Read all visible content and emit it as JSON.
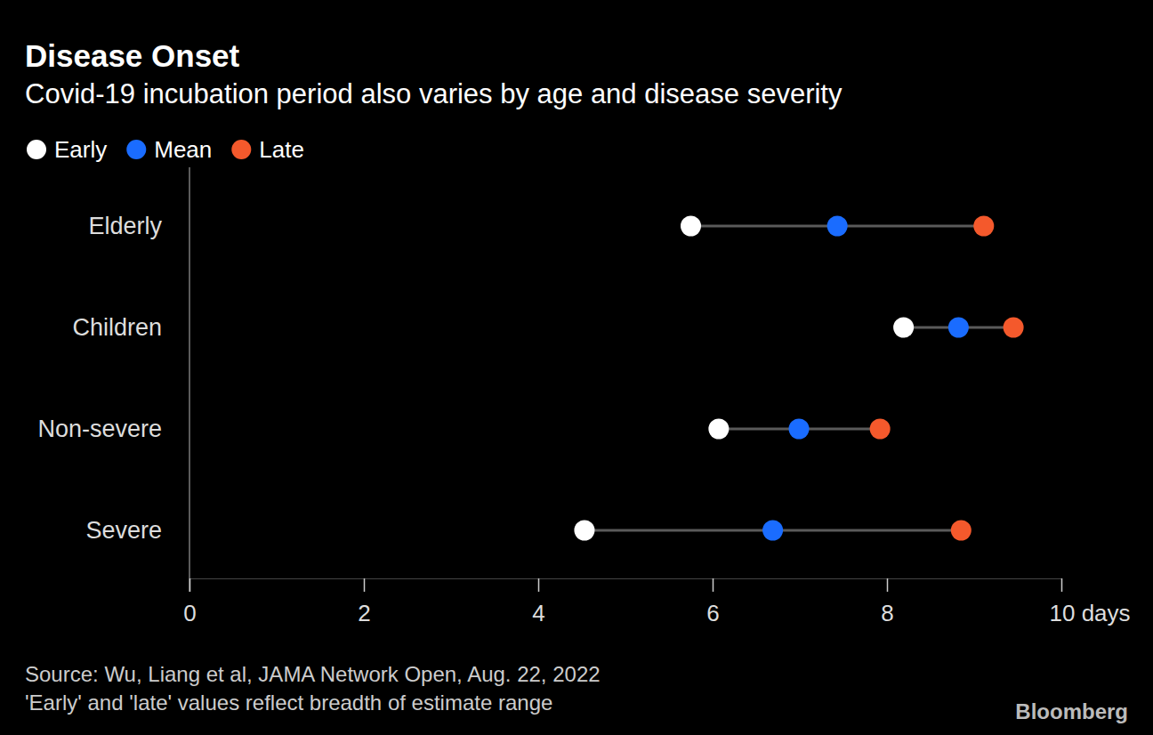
{
  "chart_data": {
    "type": "dot_range",
    "title": "Disease Onset",
    "subtitle": "Covid-19 incubation period also varies by age and disease severity",
    "categories": [
      "Elderly",
      "Children",
      "Non-severe",
      "Severe"
    ],
    "series": [
      {
        "name": "Early",
        "color": "#ffffff",
        "values": [
          5.75,
          8.19,
          6.07,
          4.53
        ]
      },
      {
        "name": "Mean",
        "color": "#1a6cff",
        "values": [
          7.43,
          8.82,
          6.99,
          6.69
        ]
      },
      {
        "name": "Late",
        "color": "#f4592c",
        "values": [
          9.11,
          9.45,
          7.92,
          8.85
        ]
      }
    ],
    "xlim": [
      0,
      10
    ],
    "xticks": [
      0,
      2,
      4,
      6,
      8,
      {
        "value": 10,
        "label": "10 days"
      }
    ],
    "legend": "top-left",
    "notes": [
      "Source: Wu, Liang et al, JAMA Network Open, Aug. 22, 2022",
      "'Early' and 'late' values reflect breadth of estimate range"
    ],
    "credit": "Bloomberg"
  }
}
